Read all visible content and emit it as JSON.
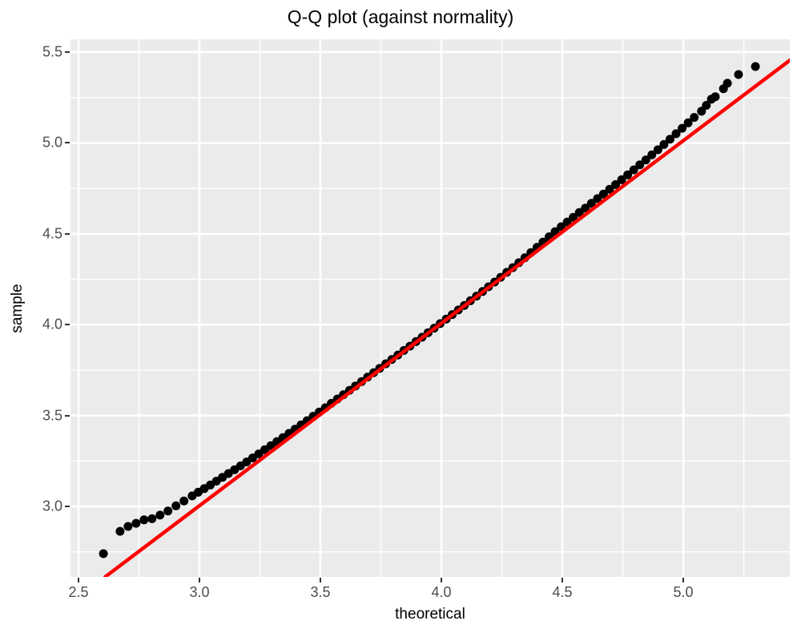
{
  "title": "Q-Q plot (against normality)",
  "chart_data": {
    "type": "scatter",
    "title": "Q-Q plot (against normality)",
    "xlabel": "theoretical",
    "ylabel": "sample",
    "xlim": [
      2.467,
      5.44
    ],
    "ylim": [
      2.612,
      5.571
    ],
    "x_ticks": [
      2.5,
      3.0,
      3.5,
      4.0,
      4.5,
      5.0
    ],
    "x_tick_labels": [
      "2.5",
      "3.0",
      "3.5",
      "4.0",
      "4.5",
      "5.0"
    ],
    "y_ticks": [
      3.0,
      3.5,
      4.0,
      4.5,
      5.0,
      5.5
    ],
    "y_tick_labels": [
      "3.0",
      "3.5",
      "4.0",
      "4.5",
      "5.0",
      "5.5"
    ],
    "x_minor": [
      2.75,
      3.25,
      3.75,
      4.25,
      4.75,
      5.25
    ],
    "y_minor": [
      2.75,
      3.25,
      3.75,
      4.25,
      4.75,
      5.25
    ],
    "grid": true,
    "legend": false,
    "reference_line": {
      "x1": 2.61,
      "y1": 2.612,
      "x2": 5.44,
      "y2": 5.455,
      "color": "#FF0000"
    },
    "points": [
      [
        2.603,
        2.74
      ],
      [
        2.672,
        2.863
      ],
      [
        2.705,
        2.89
      ],
      [
        2.738,
        2.907
      ],
      [
        2.771,
        2.926
      ],
      [
        2.804,
        2.932
      ],
      [
        2.837,
        2.952
      ],
      [
        2.87,
        2.975
      ],
      [
        2.903,
        3.003
      ],
      [
        2.936,
        3.03
      ],
      [
        2.97,
        3.058
      ],
      [
        2.995,
        3.078
      ],
      [
        3.02,
        3.098
      ],
      [
        3.045,
        3.118
      ],
      [
        3.07,
        3.139
      ],
      [
        3.095,
        3.16
      ],
      [
        3.12,
        3.181
      ],
      [
        3.145,
        3.202
      ],
      [
        3.17,
        3.223
      ],
      [
        3.195,
        3.245
      ],
      [
        3.22,
        3.267
      ],
      [
        3.245,
        3.289
      ],
      [
        3.27,
        3.312
      ],
      [
        3.295,
        3.334
      ],
      [
        3.32,
        3.357
      ],
      [
        3.345,
        3.379
      ],
      [
        3.37,
        3.402
      ],
      [
        3.395,
        3.425
      ],
      [
        3.42,
        3.449
      ],
      [
        3.445,
        3.472
      ],
      [
        3.47,
        3.496
      ],
      [
        3.495,
        3.519
      ],
      [
        3.52,
        3.543
      ],
      [
        3.545,
        3.567
      ],
      [
        3.57,
        3.591
      ],
      [
        3.595,
        3.615
      ],
      [
        3.62,
        3.639
      ],
      [
        3.645,
        3.663
      ],
      [
        3.67,
        3.687
      ],
      [
        3.695,
        3.712
      ],
      [
        3.72,
        3.736
      ],
      [
        3.745,
        3.76
      ],
      [
        3.77,
        3.785
      ],
      [
        3.795,
        3.809
      ],
      [
        3.82,
        3.833
      ],
      [
        3.845,
        3.858
      ],
      [
        3.87,
        3.882
      ],
      [
        3.895,
        3.907
      ],
      [
        3.92,
        3.931
      ],
      [
        3.945,
        3.956
      ],
      [
        3.97,
        3.981
      ],
      [
        3.995,
        4.006
      ],
      [
        4.02,
        4.031
      ],
      [
        4.045,
        4.056
      ],
      [
        4.07,
        4.081
      ],
      [
        4.095,
        4.106
      ],
      [
        4.12,
        4.132
      ],
      [
        4.145,
        4.157
      ],
      [
        4.17,
        4.183
      ],
      [
        4.195,
        4.209
      ],
      [
        4.22,
        4.235
      ],
      [
        4.245,
        4.261
      ],
      [
        4.27,
        4.288
      ],
      [
        4.295,
        4.314
      ],
      [
        4.32,
        4.341
      ],
      [
        4.345,
        4.369
      ],
      [
        4.37,
        4.397
      ],
      [
        4.395,
        4.426
      ],
      [
        4.42,
        4.455
      ],
      [
        4.445,
        4.484
      ],
      [
        4.47,
        4.512
      ],
      [
        4.495,
        4.539
      ],
      [
        4.52,
        4.565
      ],
      [
        4.545,
        4.591
      ],
      [
        4.57,
        4.617
      ],
      [
        4.595,
        4.642
      ],
      [
        4.62,
        4.668
      ],
      [
        4.645,
        4.694
      ],
      [
        4.67,
        4.719
      ],
      [
        4.695,
        4.745
      ],
      [
        4.72,
        4.771
      ],
      [
        4.745,
        4.798
      ],
      [
        4.77,
        4.825
      ],
      [
        4.795,
        4.852
      ],
      [
        4.82,
        4.88
      ],
      [
        4.845,
        4.907
      ],
      [
        4.87,
        4.935
      ],
      [
        4.895,
        4.963
      ],
      [
        4.92,
        4.992
      ],
      [
        4.945,
        5.021
      ],
      [
        4.97,
        5.051
      ],
      [
        4.995,
        5.081
      ],
      [
        5.02,
        5.111
      ],
      [
        5.045,
        5.141
      ],
      [
        5.075,
        5.175
      ],
      [
        5.095,
        5.207
      ],
      [
        5.116,
        5.241
      ],
      [
        5.132,
        5.255
      ],
      [
        5.166,
        5.299
      ],
      [
        5.182,
        5.329
      ],
      [
        5.228,
        5.377
      ],
      [
        5.298,
        5.421
      ]
    ],
    "style": {
      "panel_bg": "#EBEBEB",
      "grid_major_color": "#FFFFFF",
      "grid_minor_color": "#FFFFFF",
      "grid_major_width": 2.6,
      "grid_minor_width": 1.4,
      "point_color": "#000000",
      "point_radius": 5.5,
      "line_width": 4.5,
      "tick_color": "#333333",
      "tick_label_color": "#4D4D4D",
      "text_color": "#000000",
      "background": "#FFFFFF"
    }
  }
}
